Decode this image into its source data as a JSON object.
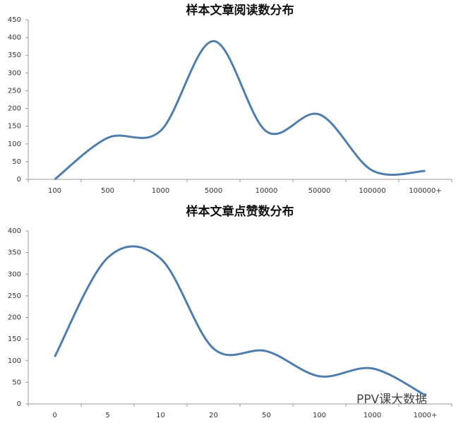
{
  "chart_data": [
    {
      "type": "line",
      "title": "样本文章阅读数分布",
      "categories": [
        "100",
        "500",
        "1000",
        "5000",
        "10000",
        "50000",
        "100000",
        "100000+"
      ],
      "series": [
        {
          "color": "#4f7eac",
          "values": [
            0,
            117,
            137,
            390,
            135,
            183,
            25,
            24
          ]
        }
      ],
      "ylim": [
        0,
        450
      ],
      "yticks": [
        0,
        50,
        100,
        150,
        200,
        250,
        300,
        350,
        400,
        450
      ],
      "smooth": true
    },
    {
      "type": "line",
      "title": "样本文章点赞数分布",
      "categories": [
        "0",
        "5",
        "10",
        "20",
        "50",
        "100",
        "1000",
        "1000+"
      ],
      "series": [
        {
          "color": "#4f7eac",
          "values": [
            109,
            338,
            336,
            128,
            122,
            64,
            82,
            20
          ]
        }
      ],
      "ylim": [
        0,
        400
      ],
      "yticks": [
        0,
        50,
        100,
        150,
        200,
        250,
        300,
        350,
        400
      ],
      "smooth": true
    }
  ],
  "watermark": "PPV课大数据"
}
